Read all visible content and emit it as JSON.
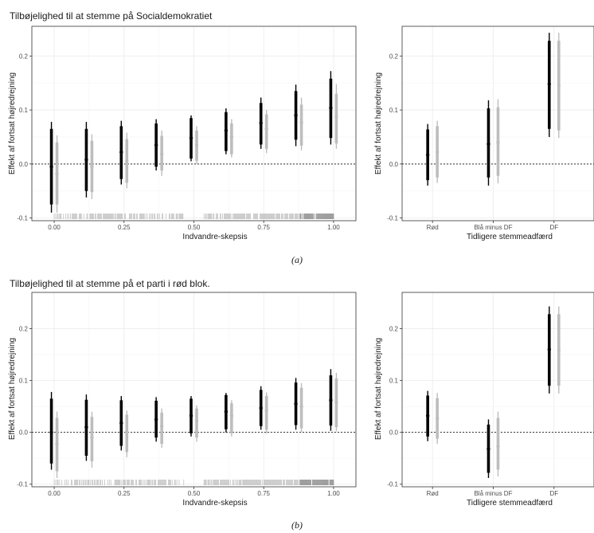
{
  "figure": {
    "caption_a": "(a)",
    "caption_b": "(b)"
  },
  "colors": {
    "black": "#000000",
    "grey": "#bdbdbd",
    "grid": "#ebebeb",
    "frame": "#333333"
  },
  "chart_data": [
    {
      "id": "a-left",
      "type": "scatter",
      "title": "Tilbøjelighed til at stemme på Socialdemokratiet",
      "xlabel": "Indvandre-skepsis",
      "ylabel": "Effekt af fortsat højredrejning",
      "xlim": [
        -0.08,
        1.08
      ],
      "ylim": [
        -0.105,
        0.255
      ],
      "xticks": [
        0.0,
        0.25,
        0.5,
        0.75,
        1.0
      ],
      "xtick_labels": [
        "0.00",
        "0.25",
        "0.50",
        "0.75",
        "1.00"
      ],
      "yticks": [
        -0.1,
        0.0,
        0.1,
        0.2
      ],
      "ytick_labels": [
        "-0.1",
        "0.0",
        "0.1",
        "0.2"
      ],
      "grid": true,
      "reference_line": 0,
      "rug": true,
      "x": [
        0.0,
        0.125,
        0.25,
        0.375,
        0.5,
        0.625,
        0.75,
        0.875,
        1.0
      ],
      "series": [
        {
          "color": "#000000",
          "est": [
            -0.005,
            0.008,
            0.022,
            0.035,
            0.048,
            0.062,
            0.076,
            0.09,
            0.104
          ],
          "lo95": [
            -0.09,
            -0.062,
            -0.038,
            -0.012,
            0.005,
            0.018,
            0.028,
            0.033,
            0.036
          ],
          "hi95": [
            0.078,
            0.078,
            0.08,
            0.083,
            0.09,
            0.103,
            0.123,
            0.147,
            0.172
          ],
          "lo90": [
            -0.075,
            -0.05,
            -0.028,
            -0.005,
            0.01,
            0.024,
            0.036,
            0.045,
            0.048
          ],
          "hi90": [
            0.065,
            0.065,
            0.07,
            0.075,
            0.085,
            0.096,
            0.113,
            0.135,
            0.158
          ]
        },
        {
          "color": "#bdbdbd",
          "est": [
            -0.018,
            -0.005,
            0.005,
            0.018,
            0.035,
            0.05,
            0.065,
            0.077,
            0.088
          ],
          "lo95": [
            -0.09,
            -0.065,
            -0.045,
            -0.022,
            0.0,
            0.012,
            0.02,
            0.025,
            0.028
          ],
          "hi95": [
            0.053,
            0.055,
            0.058,
            0.062,
            0.07,
            0.083,
            0.1,
            0.123,
            0.148
          ],
          "lo90": [
            -0.075,
            -0.052,
            -0.035,
            -0.012,
            0.006,
            0.018,
            0.028,
            0.034,
            0.038
          ],
          "hi90": [
            0.04,
            0.043,
            0.046,
            0.052,
            0.062,
            0.075,
            0.092,
            0.11,
            0.13
          ]
        }
      ]
    },
    {
      "id": "a-right",
      "type": "scatter",
      "xlabel": "Tidligere stemmeadfærd",
      "ylabel": "Effekt af fortsat højredrejning",
      "categories": [
        "Rød",
        "Blå minus DF",
        "DF"
      ],
      "ylim": [
        -0.105,
        0.255
      ],
      "yticks": [
        -0.1,
        0.0,
        0.1,
        0.2
      ],
      "ytick_labels": [
        "-0.1",
        "0.0",
        "0.1",
        "0.2"
      ],
      "grid": true,
      "reference_line": 0,
      "series": [
        {
          "color": "#000000",
          "est": [
            0.017,
            0.037,
            0.148
          ],
          "lo95": [
            -0.04,
            -0.04,
            0.05
          ],
          "hi95": [
            0.074,
            0.118,
            0.243
          ],
          "lo90": [
            -0.03,
            -0.025,
            0.065
          ],
          "hi90": [
            0.064,
            0.103,
            0.228
          ]
        },
        {
          "color": "#bdbdbd",
          "est": [
            0.022,
            0.04,
            0.145
          ],
          "lo95": [
            -0.035,
            -0.036,
            0.048
          ],
          "hi95": [
            0.08,
            0.12,
            0.243
          ],
          "lo90": [
            -0.025,
            -0.022,
            0.062
          ],
          "hi90": [
            0.07,
            0.105,
            0.228
          ]
        }
      ]
    },
    {
      "id": "b-left",
      "type": "scatter",
      "title": "Tilbøjelighed til at stemme på et parti i rød blok.",
      "xlabel": "Indvandre-skepsis",
      "ylabel": "Effekt af fortsat højredrejning",
      "xlim": [
        -0.08,
        1.08
      ],
      "ylim": [
        -0.105,
        0.27
      ],
      "xticks": [
        0.0,
        0.25,
        0.5,
        0.75,
        1.0
      ],
      "xtick_labels": [
        "0.00",
        "0.25",
        "0.50",
        "0.75",
        "1.00"
      ],
      "yticks": [
        -0.1,
        0.0,
        0.1,
        0.2
      ],
      "ytick_labels": [
        "-0.1",
        "0.0",
        "0.1",
        "0.2"
      ],
      "grid": true,
      "reference_line": 0,
      "rug": true,
      "x": [
        0.0,
        0.125,
        0.25,
        0.375,
        0.5,
        0.625,
        0.75,
        0.875,
        1.0
      ],
      "series": [
        {
          "color": "#000000",
          "est": [
            0.0,
            0.01,
            0.018,
            0.025,
            0.032,
            0.04,
            0.047,
            0.055,
            0.062
          ],
          "lo95": [
            -0.072,
            -0.055,
            -0.035,
            -0.018,
            -0.008,
            0.0,
            0.005,
            0.005,
            0.003
          ],
          "hi95": [
            0.078,
            0.073,
            0.07,
            0.068,
            0.07,
            0.076,
            0.089,
            0.105,
            0.122
          ],
          "lo90": [
            -0.06,
            -0.045,
            -0.026,
            -0.01,
            -0.002,
            0.006,
            0.012,
            0.014,
            0.013
          ],
          "hi90": [
            0.065,
            0.063,
            0.062,
            0.061,
            0.065,
            0.072,
            0.082,
            0.096,
            0.11
          ]
        },
        {
          "color": "#bdbdbd",
          "est": [
            -0.022,
            -0.01,
            0.0,
            0.012,
            0.022,
            0.032,
            0.042,
            0.05,
            0.058
          ],
          "lo95": [
            -0.088,
            -0.068,
            -0.048,
            -0.03,
            -0.018,
            -0.008,
            -0.002,
            0.0,
            0.002
          ],
          "hi95": [
            0.04,
            0.04,
            0.042,
            0.046,
            0.052,
            0.062,
            0.077,
            0.095,
            0.115
          ],
          "lo90": [
            -0.075,
            -0.056,
            -0.038,
            -0.022,
            -0.01,
            -0.002,
            0.005,
            0.008,
            0.01
          ],
          "hi90": [
            0.028,
            0.03,
            0.034,
            0.038,
            0.046,
            0.056,
            0.07,
            0.086,
            0.104
          ]
        }
      ]
    },
    {
      "id": "b-right",
      "type": "scatter",
      "xlabel": "Tidligere stemmeadfærd",
      "ylabel": "Effekt af fortsat højredrejning",
      "categories": [
        "Rød",
        "Blå minus DF",
        "DF"
      ],
      "ylim": [
        -0.105,
        0.27
      ],
      "yticks": [
        -0.1,
        0.0,
        0.1,
        0.2
      ],
      "ytick_labels": [
        "-0.1",
        "0.0",
        "0.1",
        "0.2"
      ],
      "grid": true,
      "reference_line": 0,
      "series": [
        {
          "color": "#000000",
          "est": [
            0.032,
            -0.032,
            0.16
          ],
          "lo95": [
            -0.017,
            -0.088,
            0.075
          ],
          "hi95": [
            0.08,
            0.025,
            0.243
          ],
          "lo90": [
            -0.008,
            -0.078,
            0.09
          ],
          "hi90": [
            0.071,
            0.015,
            0.228
          ]
        },
        {
          "color": "#bdbdbd",
          "est": [
            0.027,
            -0.027,
            0.158
          ],
          "lo95": [
            -0.022,
            -0.085,
            0.075
          ],
          "hi95": [
            0.076,
            0.04,
            0.243
          ],
          "lo90": [
            -0.012,
            -0.072,
            0.09
          ],
          "hi90": [
            0.066,
            0.028,
            0.228
          ]
        }
      ]
    }
  ]
}
